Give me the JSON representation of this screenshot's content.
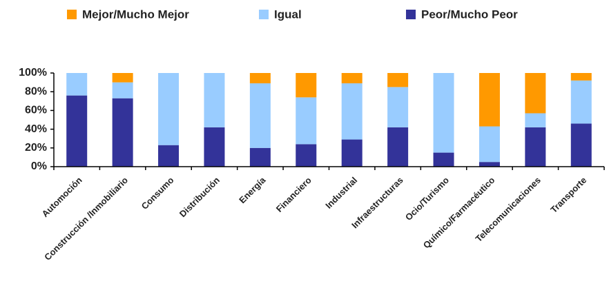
{
  "chart_data": {
    "type": "stacked_bar",
    "categories": [
      "Automoción",
      "Construcción /Inmobiliario",
      "Consumo",
      "Distribución",
      "Energía",
      "Financiero",
      "Industrial",
      "Infraestructuras",
      "Ocio/Turismo",
      "Químico/Farmacéutico",
      "Telecomunicaciones",
      "Transporte"
    ],
    "series": [
      {
        "name": "Mejor/Mucho Mejor",
        "color": "#ff9900",
        "values": [
          0,
          10,
          0,
          0,
          11,
          26,
          11,
          15,
          0,
          57,
          43,
          8
        ]
      },
      {
        "name": "Igual",
        "color": "#99ccff",
        "values": [
          24,
          17,
          77,
          58,
          69,
          50,
          60,
          43,
          85,
          38,
          15,
          46
        ]
      },
      {
        "name": "Peor/Mucho Peor",
        "color": "#333399",
        "values": [
          76,
          73,
          23,
          42,
          20,
          24,
          29,
          42,
          15,
          5,
          42,
          46
        ]
      }
    ],
    "ylim": [
      0,
      100
    ],
    "yticks": [
      {
        "value": 0,
        "label": "0%"
      },
      {
        "value": 20,
        "label": "20%"
      },
      {
        "value": 40,
        "label": "40%"
      },
      {
        "value": 60,
        "label": "60%"
      },
      {
        "value": 80,
        "label": "80%"
      },
      {
        "value": 100,
        "label": "100%"
      }
    ],
    "legend": "top"
  }
}
